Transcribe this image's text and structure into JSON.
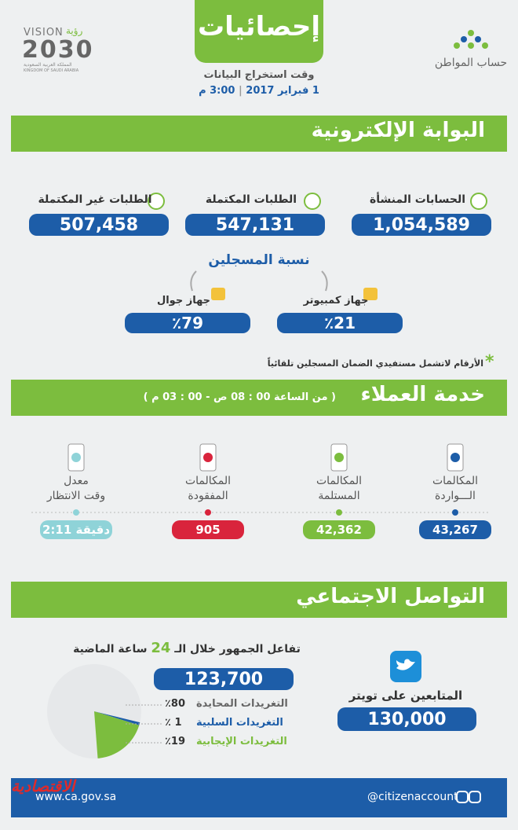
{
  "header": {
    "title": "إحصائيات",
    "extraction_label": "وقت استخراج البيانات",
    "date": "1 فبراير 2017",
    "time": "3:00 م",
    "brand": "حساب المواطن",
    "vision_word": "VISION",
    "vision_year": "2030",
    "vision_ar": "رؤية",
    "kingdom_ar": "المملكة العربية السعودية",
    "kingdom_en": "KINGDOM OF SAUDI ARABIA"
  },
  "portal": {
    "title": "البوابة الإلكترونية",
    "stats": [
      {
        "label": "الحسابات المنشأة",
        "value": "1,054,589"
      },
      {
        "label": "الطلبات المكتملة",
        "value": "547,131"
      },
      {
        "label": "الطلبات غير المكتملة",
        "value": "507,458"
      }
    ],
    "registration_title": "نسبة المسجلين",
    "devices": [
      {
        "label": "جهاز كمبيوتر",
        "value": "٪21"
      },
      {
        "label": "جهاز جوال",
        "value": "٪79"
      }
    ],
    "note": "الأرقام لاتشمل مستفيدي الضمان المسجلين تلقائياً"
  },
  "service": {
    "title": "خدمة العملاء",
    "hours": "( من الساعة 00 : 08 ص - 00 : 03 م )",
    "items": [
      {
        "label_lines": [
          "المكالمات",
          "الـــواردة"
        ],
        "value": "43,267",
        "color": "#1d5da8"
      },
      {
        "label_lines": [
          "المكالمات",
          "المستلمة"
        ],
        "value": "42,362",
        "color": "#7cbd3e"
      },
      {
        "label_lines": [
          "المكالمات",
          "المفقودة"
        ],
        "value": "905",
        "color": "#d9243c"
      },
      {
        "label_lines": [
          "معدل",
          "وقت الانتظار"
        ],
        "value": "2:11 دقيقة",
        "color": "#8fd3d8"
      }
    ]
  },
  "social": {
    "title": "التواصل الاجتماعي",
    "followers_label": "المتابعين على تويتر",
    "followers": "130,000",
    "interaction_prefix": "تفاعل الجمهور خلال الـ",
    "interaction_hours": "24",
    "interaction_suffix": "ساعة الماضية",
    "interactions": "123,700",
    "pie": {
      "type": "pie",
      "categories": [
        "التغريدات المحايدة",
        "التغريدات السلبية",
        "التغريدات الإيجابية"
      ],
      "values": [
        80,
        1,
        19
      ],
      "value_labels": [
        "٪80",
        "٪ 1",
        "٪19"
      ],
      "colors": [
        "#e6e8ea",
        "#1d5da8",
        "#7cbd3e"
      ]
    }
  },
  "footer": {
    "handle": "@citizenaccount",
    "website": "www.ca.gov.sa",
    "publisher": "الاقتصادية"
  }
}
